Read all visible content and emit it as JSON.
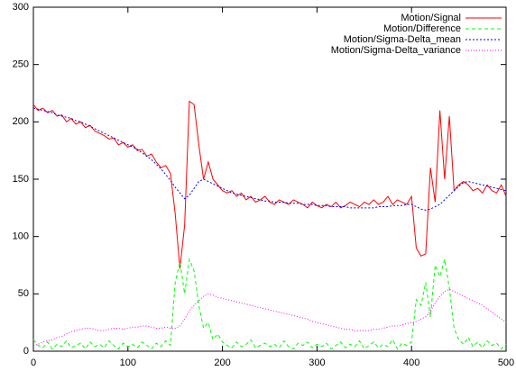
{
  "chart_data": {
    "type": "line",
    "xlim": [
      0,
      500
    ],
    "ylim": [
      0,
      300
    ],
    "xticks": [
      0,
      100,
      200,
      300,
      400,
      500
    ],
    "yticks": [
      0,
      50,
      100,
      150,
      200,
      250,
      300
    ],
    "legend": "upper right",
    "grid": false,
    "x": [
      0,
      5,
      10,
      15,
      20,
      25,
      30,
      35,
      40,
      45,
      50,
      55,
      60,
      65,
      70,
      75,
      80,
      85,
      90,
      95,
      100,
      105,
      110,
      115,
      120,
      125,
      130,
      135,
      140,
      145,
      150,
      155,
      160,
      165,
      170,
      175,
      180,
      185,
      190,
      195,
      200,
      205,
      210,
      215,
      220,
      225,
      230,
      235,
      240,
      245,
      250,
      255,
      260,
      265,
      270,
      275,
      280,
      285,
      290,
      295,
      300,
      305,
      310,
      315,
      320,
      325,
      330,
      335,
      340,
      345,
      350,
      355,
      360,
      365,
      370,
      375,
      380,
      385,
      390,
      395,
      400,
      405,
      410,
      415,
      420,
      425,
      430,
      435,
      440,
      445,
      450,
      455,
      460,
      465,
      470,
      475,
      480,
      485,
      490,
      495,
      500
    ],
    "series": [
      {
        "name": "Motion/Signal",
        "color": "#ff0000",
        "dash": "",
        "values": [
          215,
          210,
          212,
          208,
          210,
          205,
          206,
          200,
          203,
          198,
          200,
          195,
          197,
          192,
          190,
          188,
          185,
          186,
          180,
          182,
          178,
          180,
          175,
          176,
          170,
          172,
          165,
          160,
          162,
          155,
          120,
          72,
          110,
          218,
          215,
          180,
          150,
          165,
          150,
          145,
          140,
          138,
          140,
          135,
          138,
          132,
          135,
          130,
          132,
          135,
          130,
          128,
          132,
          130,
          128,
          132,
          130,
          128,
          125,
          130,
          127,
          125,
          128,
          126,
          130,
          125,
          127,
          130,
          128,
          126,
          130,
          128,
          132,
          128,
          130,
          135,
          128,
          132,
          130,
          128,
          135,
          90,
          83,
          85,
          160,
          130,
          210,
          150,
          205,
          140,
          145,
          148,
          145,
          140,
          142,
          138,
          145,
          140,
          138,
          145,
          135
        ]
      },
      {
        "name": "Motion/Difference",
        "color": "#00ff00",
        "dash": "4 3",
        "values": [
          10,
          5,
          3,
          8,
          2,
          6,
          4,
          9,
          3,
          5,
          7,
          2,
          8,
          4,
          6,
          3,
          9,
          5,
          2,
          7,
          4,
          6,
          3,
          8,
          5,
          2,
          7,
          4,
          9,
          5,
          60,
          78,
          50,
          80,
          70,
          40,
          20,
          25,
          10,
          15,
          8,
          5,
          3,
          8,
          4,
          6,
          10,
          3,
          5,
          7,
          4,
          6,
          3,
          9,
          4,
          2,
          7,
          5,
          8,
          3,
          6,
          4,
          7,
          2,
          5,
          8,
          3,
          6,
          4,
          9,
          2,
          5,
          8,
          3,
          6,
          4,
          10,
          2,
          7,
          5,
          8,
          45,
          40,
          60,
          30,
          75,
          65,
          80,
          55,
          20,
          10,
          6,
          12,
          4,
          8,
          3,
          9,
          5,
          7,
          2,
          6
        ]
      },
      {
        "name": "Motion/Sigma-Delta_mean",
        "color": "#0000ff",
        "dash": "2 2",
        "values": [
          212,
          211,
          210,
          209,
          208,
          206,
          205,
          204,
          203,
          201,
          200,
          198,
          196,
          194,
          192,
          190,
          188,
          186,
          184,
          182,
          180,
          178,
          176,
          173,
          170,
          167,
          163,
          159,
          154,
          149,
          143,
          138,
          133,
          136,
          142,
          148,
          150,
          148,
          146,
          144,
          142,
          140,
          138,
          137,
          136,
          135,
          134,
          133,
          132,
          131,
          131,
          130,
          130,
          130,
          129,
          129,
          129,
          128,
          128,
          128,
          127,
          127,
          127,
          126,
          126,
          126,
          126,
          125,
          125,
          125,
          125,
          125,
          125,
          126,
          126,
          126,
          127,
          127,
          127,
          128,
          128,
          126,
          124,
          123,
          124,
          126,
          128,
          132,
          136,
          140,
          144,
          147,
          148,
          147,
          146,
          145,
          144,
          143,
          142,
          141,
          140
        ]
      },
      {
        "name": "Motion/Sigma-Delta_variance",
        "color": "#ff00ff",
        "dash": "1 2",
        "values": [
          5,
          6,
          8,
          9,
          10,
          12,
          13,
          15,
          17,
          18,
          19,
          20,
          20,
          19,
          18,
          18,
          19,
          20,
          20,
          19,
          20,
          21,
          21,
          22,
          22,
          21,
          20,
          20,
          21,
          20,
          20,
          22,
          28,
          35,
          40,
          44,
          48,
          50,
          49,
          47,
          46,
          45,
          44,
          43,
          42,
          41,
          40,
          39,
          38,
          37,
          36,
          35,
          34,
          33,
          32,
          31,
          30,
          29,
          28,
          26,
          25,
          24,
          23,
          22,
          21,
          20,
          19,
          19,
          18,
          18,
          18,
          18,
          19,
          19,
          20,
          21,
          22,
          22,
          23,
          24,
          25,
          26,
          28,
          30,
          35,
          42,
          48,
          52,
          54,
          52,
          50,
          48,
          46,
          44,
          42,
          40,
          37,
          34,
          31,
          28,
          25
        ]
      }
    ]
  }
}
